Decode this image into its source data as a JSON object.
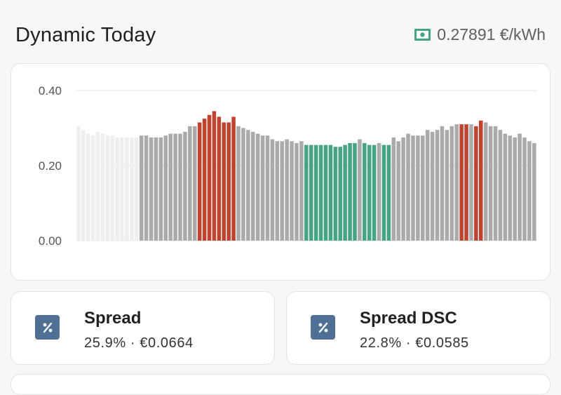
{
  "header": {
    "title": "Dynamic Today",
    "price": "0.27891 €/kWh",
    "price_icon": "cash-icon"
  },
  "chart_data": {
    "type": "bar",
    "y_ticks": [
      "0.40",
      "0.20",
      "0.00"
    ],
    "ylim": [
      0,
      0.4
    ],
    "grid": true,
    "colors": {
      "past": "#eeeeee",
      "normal": "#aaaaaa",
      "expensive": "#c0432f",
      "cheap": "#46a383"
    },
    "values": [
      0.305,
      0.295,
      0.285,
      0.28,
      0.29,
      0.285,
      0.28,
      0.28,
      0.275,
      0.275,
      0.275,
      0.275,
      0.275,
      0.28,
      0.28,
      0.275,
      0.275,
      0.275,
      0.28,
      0.285,
      0.285,
      0.285,
      0.29,
      0.305,
      0.305,
      0.315,
      0.325,
      0.335,
      0.345,
      0.33,
      0.315,
      0.315,
      0.33,
      0.305,
      0.3,
      0.295,
      0.29,
      0.285,
      0.28,
      0.28,
      0.27,
      0.265,
      0.265,
      0.27,
      0.265,
      0.26,
      0.265,
      0.255,
      0.255,
      0.255,
      0.255,
      0.255,
      0.255,
      0.25,
      0.25,
      0.255,
      0.26,
      0.26,
      0.27,
      0.26,
      0.255,
      0.255,
      0.26,
      0.255,
      0.255,
      0.275,
      0.265,
      0.275,
      0.285,
      0.28,
      0.28,
      0.28,
      0.295,
      0.29,
      0.295,
      0.305,
      0.295,
      0.305,
      0.31,
      0.31,
      0.31,
      0.31,
      0.305,
      0.32,
      0.315,
      0.305,
      0.305,
      0.295,
      0.285,
      0.28,
      0.275,
      0.285,
      0.275,
      0.265,
      0.26
    ],
    "status": [
      "past",
      "past",
      "past",
      "past",
      "past",
      "past",
      "past",
      "past",
      "past",
      "past",
      "past",
      "past",
      "past",
      "normal",
      "normal",
      "normal",
      "normal",
      "normal",
      "normal",
      "normal",
      "normal",
      "normal",
      "normal",
      "normal",
      "normal",
      "expensive",
      "expensive",
      "expensive",
      "expensive",
      "expensive",
      "expensive",
      "expensive",
      "expensive",
      "normal",
      "normal",
      "normal",
      "normal",
      "normal",
      "normal",
      "normal",
      "normal",
      "normal",
      "normal",
      "normal",
      "normal",
      "normal",
      "normal",
      "cheap",
      "cheap",
      "cheap",
      "cheap",
      "cheap",
      "cheap",
      "cheap",
      "cheap",
      "cheap",
      "cheap",
      "cheap",
      "normal",
      "cheap",
      "cheap",
      "cheap",
      "normal",
      "cheap",
      "cheap",
      "normal",
      "normal",
      "normal",
      "normal",
      "normal",
      "normal",
      "normal",
      "normal",
      "normal",
      "normal",
      "normal",
      "normal",
      "normal",
      "normal",
      "expensive",
      "expensive",
      "normal",
      "expensive",
      "expensive",
      "normal",
      "normal",
      "normal",
      "normal",
      "normal",
      "normal",
      "normal",
      "normal",
      "normal",
      "normal",
      "normal"
    ]
  },
  "tiles": [
    {
      "name": "Spread",
      "value": "25.9% · €0.0664",
      "icon": "percent-icon",
      "icon_color": "#4f6f95"
    },
    {
      "name": "Spread DSC",
      "value": "22.8% · €0.0585",
      "icon": "percent-icon",
      "icon_color": "#4f6f95"
    }
  ]
}
